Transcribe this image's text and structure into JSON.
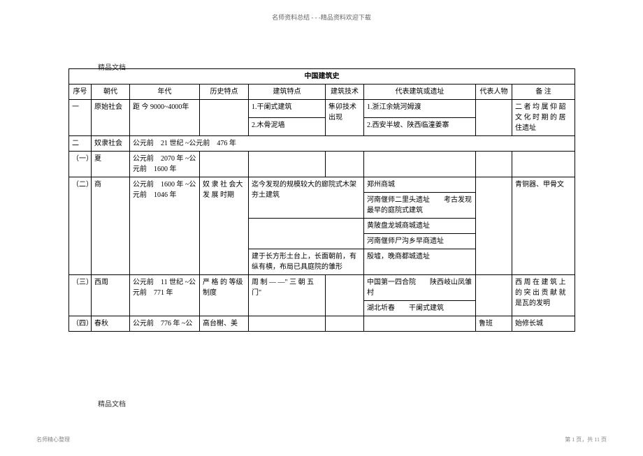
{
  "header_tag": "名师资料总结 - - -精品资料欢迎下载",
  "doc_label": "精品文档",
  "doc_label_bottom": "精品文档",
  "footer_left": "名师精心整理",
  "footer_right": "第 1 页，共 11 页",
  "title": "中国建筑史",
  "headers": {
    "num": "序号",
    "dynasty": "朝代",
    "era": "年代",
    "history": "历史特点",
    "feature": "建筑特点",
    "tech": "建筑技术",
    "rep": "代表建筑或遗址",
    "person": "代表人物",
    "note": "备 注"
  },
  "r1": {
    "num": "一",
    "dynasty": "原始社会",
    "era": "距 今 9000~4000年",
    "feature1": "1.干阑式建筑",
    "feature2": "2.木骨泥墙",
    "tech": "隼卯技术出现",
    "rep1": "1.浙江余姚河姆渡",
    "rep2": "2.西安半坡、陕西临潼姜寨",
    "note": "二 者 均 属 仰 韶文 化 时 期 的 居住遗址"
  },
  "r2": {
    "num": "二",
    "dynasty": "奴隶社会",
    "era": "公元前　21 世纪 ~公元前　476 年"
  },
  "r2a": {
    "num": "（一）",
    "dynasty": "夏",
    "era": "公元前　2070 年 ~公元前　1600 年"
  },
  "r2b": {
    "num": "（二）",
    "dynasty": "商",
    "era": "公元前　1600 年 ~公元前　1046 年",
    "history": "奴 隶 社 会大 发 展 时期",
    "feature1": "迄今发现的规模较大的廊院式木架夯土建筑",
    "feature2": "建于长方形土台上，长面朝前，有纵有横，布局已具庭院的雏形",
    "rep1": "郑州商城",
    "rep2": "河南偃师二里头遗址　　考古发现最早的庭院式建筑",
    "rep3": "黄陂盘龙城商城遗址",
    "rep4": "河南偃师尸沟乡早商遗址",
    "rep5": "殷墟，晚商都城遗址",
    "note": "青铜器、甲骨文"
  },
  "r2c": {
    "num": "（三）",
    "dynasty": "西周",
    "era": "公元前　11 世纪 ~公元前　771 年",
    "history": "严 格 的 等级制度",
    "feature": "周 制 — —\" 三 朝 五门\"",
    "rep1": "中国第一四合院　　陕西岐山凤雏村",
    "rep2": "湖北圻春　　干阑式建筑",
    "note": "西 周 在 建 筑 上的 突 出 贡 献 就是瓦的发明"
  },
  "r2d": {
    "num": "（四）",
    "dynasty": "春秋",
    "era": "公元前　776 年 ~公",
    "history": "高台榭、美",
    "person": "鲁班",
    "note": "始修长城"
  }
}
